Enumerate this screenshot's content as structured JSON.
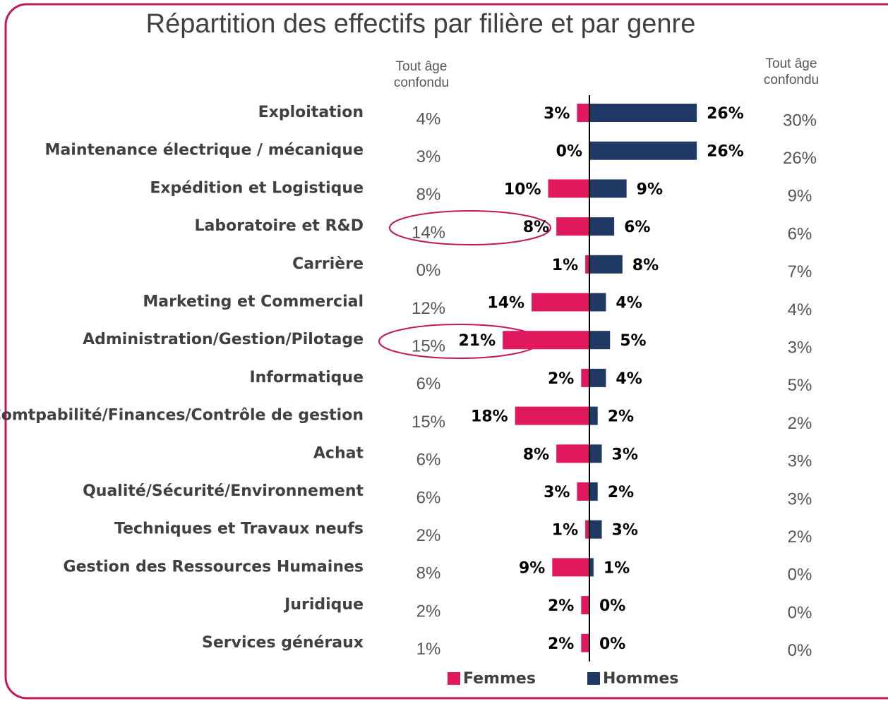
{
  "chart_data": {
    "type": "butterfly",
    "title": "Répartition des effectifs par filière et par genre",
    "categories": [
      "Exploitation",
      "Maintenance électrique / mécanique",
      "Expédition et Logistique",
      "Laboratoire et R&D",
      "Carrière",
      "Marketing et Commercial",
      "Administration/Gestion/Pilotage",
      "Informatique",
      "Comtpabilité/Finances/Contrôle de gestion",
      "Achat",
      "Qualité/Sécurité/Environnement",
      "Techniques et Travaux neufs",
      "Gestion des Ressources Humaines",
      "Juridique",
      "Services généraux"
    ],
    "series": [
      {
        "name": "Femmes",
        "color": "#e0195e",
        "side": "left",
        "values": [
          3,
          0,
          10,
          8,
          1,
          14,
          21,
          2,
          18,
          8,
          3,
          1,
          9,
          2,
          2
        ],
        "value_labels": [
          "3%",
          "0%",
          "10%",
          "8%",
          "1%",
          "14%",
          "21%",
          "2%",
          "18%",
          "8%",
          "3%",
          "1%",
          "9%",
          "2%",
          "2%"
        ]
      },
      {
        "name": "Hommes",
        "color": "#1f3864",
        "side": "right",
        "values": [
          26,
          26,
          9,
          6,
          8,
          4,
          5,
          4,
          2,
          3,
          2,
          3,
          1,
          0,
          0
        ],
        "value_labels": [
          "26%",
          "26%",
          "9%",
          "6%",
          "8%",
          "4%",
          "5%",
          "4%",
          "2%",
          "3%",
          "2%",
          "3%",
          "1%",
          "0%",
          "0%"
        ]
      }
    ],
    "left_column": {
      "header": "Tout âge confondu",
      "values": [
        4,
        3,
        8,
        14,
        0,
        12,
        15,
        6,
        15,
        6,
        6,
        2,
        8,
        2,
        1
      ],
      "value_labels": [
        "4%",
        "3%",
        "8%",
        "14%",
        "0%",
        "12%",
        "15%",
        "6%",
        "15%",
        "6%",
        "6%",
        "2%",
        "8%",
        "2%",
        "1%"
      ]
    },
    "right_column": {
      "header": "Tout âge confondu",
      "values": [
        30,
        26,
        9,
        6,
        7,
        4,
        3,
        5,
        2,
        3,
        3,
        2,
        0,
        0,
        0
      ],
      "value_labels": [
        "30%",
        "26%",
        "9%",
        "6%",
        "7%",
        "4%",
        "3%",
        "5%",
        "2%",
        "3%",
        "3%",
        "2%",
        "0%",
        "0%",
        "0%"
      ]
    }
  }
}
